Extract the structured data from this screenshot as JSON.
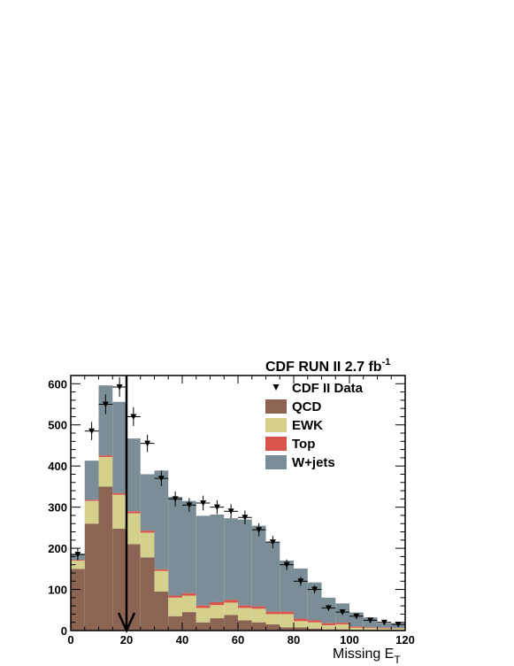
{
  "chart_data": {
    "type": "bar",
    "title": "CDF RUN II 2.7 fb",
    "title_superscript": "-1",
    "xlabel": "Missing E",
    "xlabel_subscript": "T",
    "ylabel": "",
    "xlim": [
      0,
      120
    ],
    "ylim": [
      0,
      620
    ],
    "xticks": [
      0,
      20,
      40,
      60,
      80,
      100,
      120
    ],
    "yticks": [
      0,
      100,
      200,
      300,
      400,
      500,
      600
    ],
    "bin_edges": [
      0,
      5,
      10,
      15,
      20,
      25,
      30,
      35,
      40,
      45,
      50,
      55,
      60,
      65,
      70,
      75,
      80,
      85,
      90,
      95,
      100,
      105,
      110,
      115,
      120
    ],
    "stacked": true,
    "grid": false,
    "legend_position": "top-right",
    "series": [
      {
        "name": "QCD",
        "color": "#8c6454",
        "values": [
          150,
          260,
          350,
          248,
          210,
          178,
          95,
          35,
          45,
          20,
          30,
          38,
          25,
          20,
          15,
          8,
          8,
          5,
          3,
          3,
          2,
          2,
          2,
          2
        ]
      },
      {
        "name": "EWK",
        "color": "#d5d18c",
        "values": [
          20,
          55,
          72,
          82,
          75,
          60,
          50,
          45,
          40,
          35,
          32,
          30,
          30,
          33,
          25,
          32,
          15,
          15,
          10,
          12,
          5,
          4,
          3,
          3
        ]
      },
      {
        "name": "Top",
        "color": "#d9544d",
        "values": [
          2,
          3,
          4,
          4,
          5,
          5,
          4,
          5,
          6,
          6,
          7,
          7,
          6,
          6,
          6,
          6,
          6,
          5,
          5,
          4,
          3,
          2,
          2,
          1
        ]
      },
      {
        "name": "W+jets",
        "color": "#7b8d96",
        "values": [
          15,
          95,
          170,
          222,
          177,
          137,
          240,
          240,
          224,
          218,
          213,
          198,
          209,
          196,
          169,
          124,
          122,
          92,
          62,
          47,
          34,
          24,
          11,
          12
        ]
      }
    ],
    "data_series": {
      "name": "CDF II Data",
      "x": [
        2.5,
        7.5,
        12.5,
        17.5,
        22.5,
        27.5,
        32.5,
        37.5,
        42.5,
        47.5,
        52.5,
        57.5,
        62.5,
        67.5,
        72.5,
        77.5,
        82.5,
        87.5,
        92.5,
        97.5,
        102.5,
        107.5,
        112.5,
        117.5
      ],
      "y": [
        185,
        485,
        550,
        592,
        520,
        455,
        370,
        320,
        305,
        310,
        300,
        290,
        275,
        245,
        215,
        160,
        120,
        100,
        55,
        45,
        35,
        25,
        20,
        15
      ],
      "yerr": [
        14,
        22,
        24,
        24,
        23,
        21,
        19,
        18,
        17,
        18,
        17,
        17,
        17,
        16,
        15,
        13,
        11,
        10,
        7,
        7,
        6,
        5,
        4,
        4
      ]
    },
    "annotations": [
      {
        "type": "arrow",
        "x": 20,
        "direction": "down",
        "from_y": 620,
        "to_y": 0
      }
    ]
  }
}
